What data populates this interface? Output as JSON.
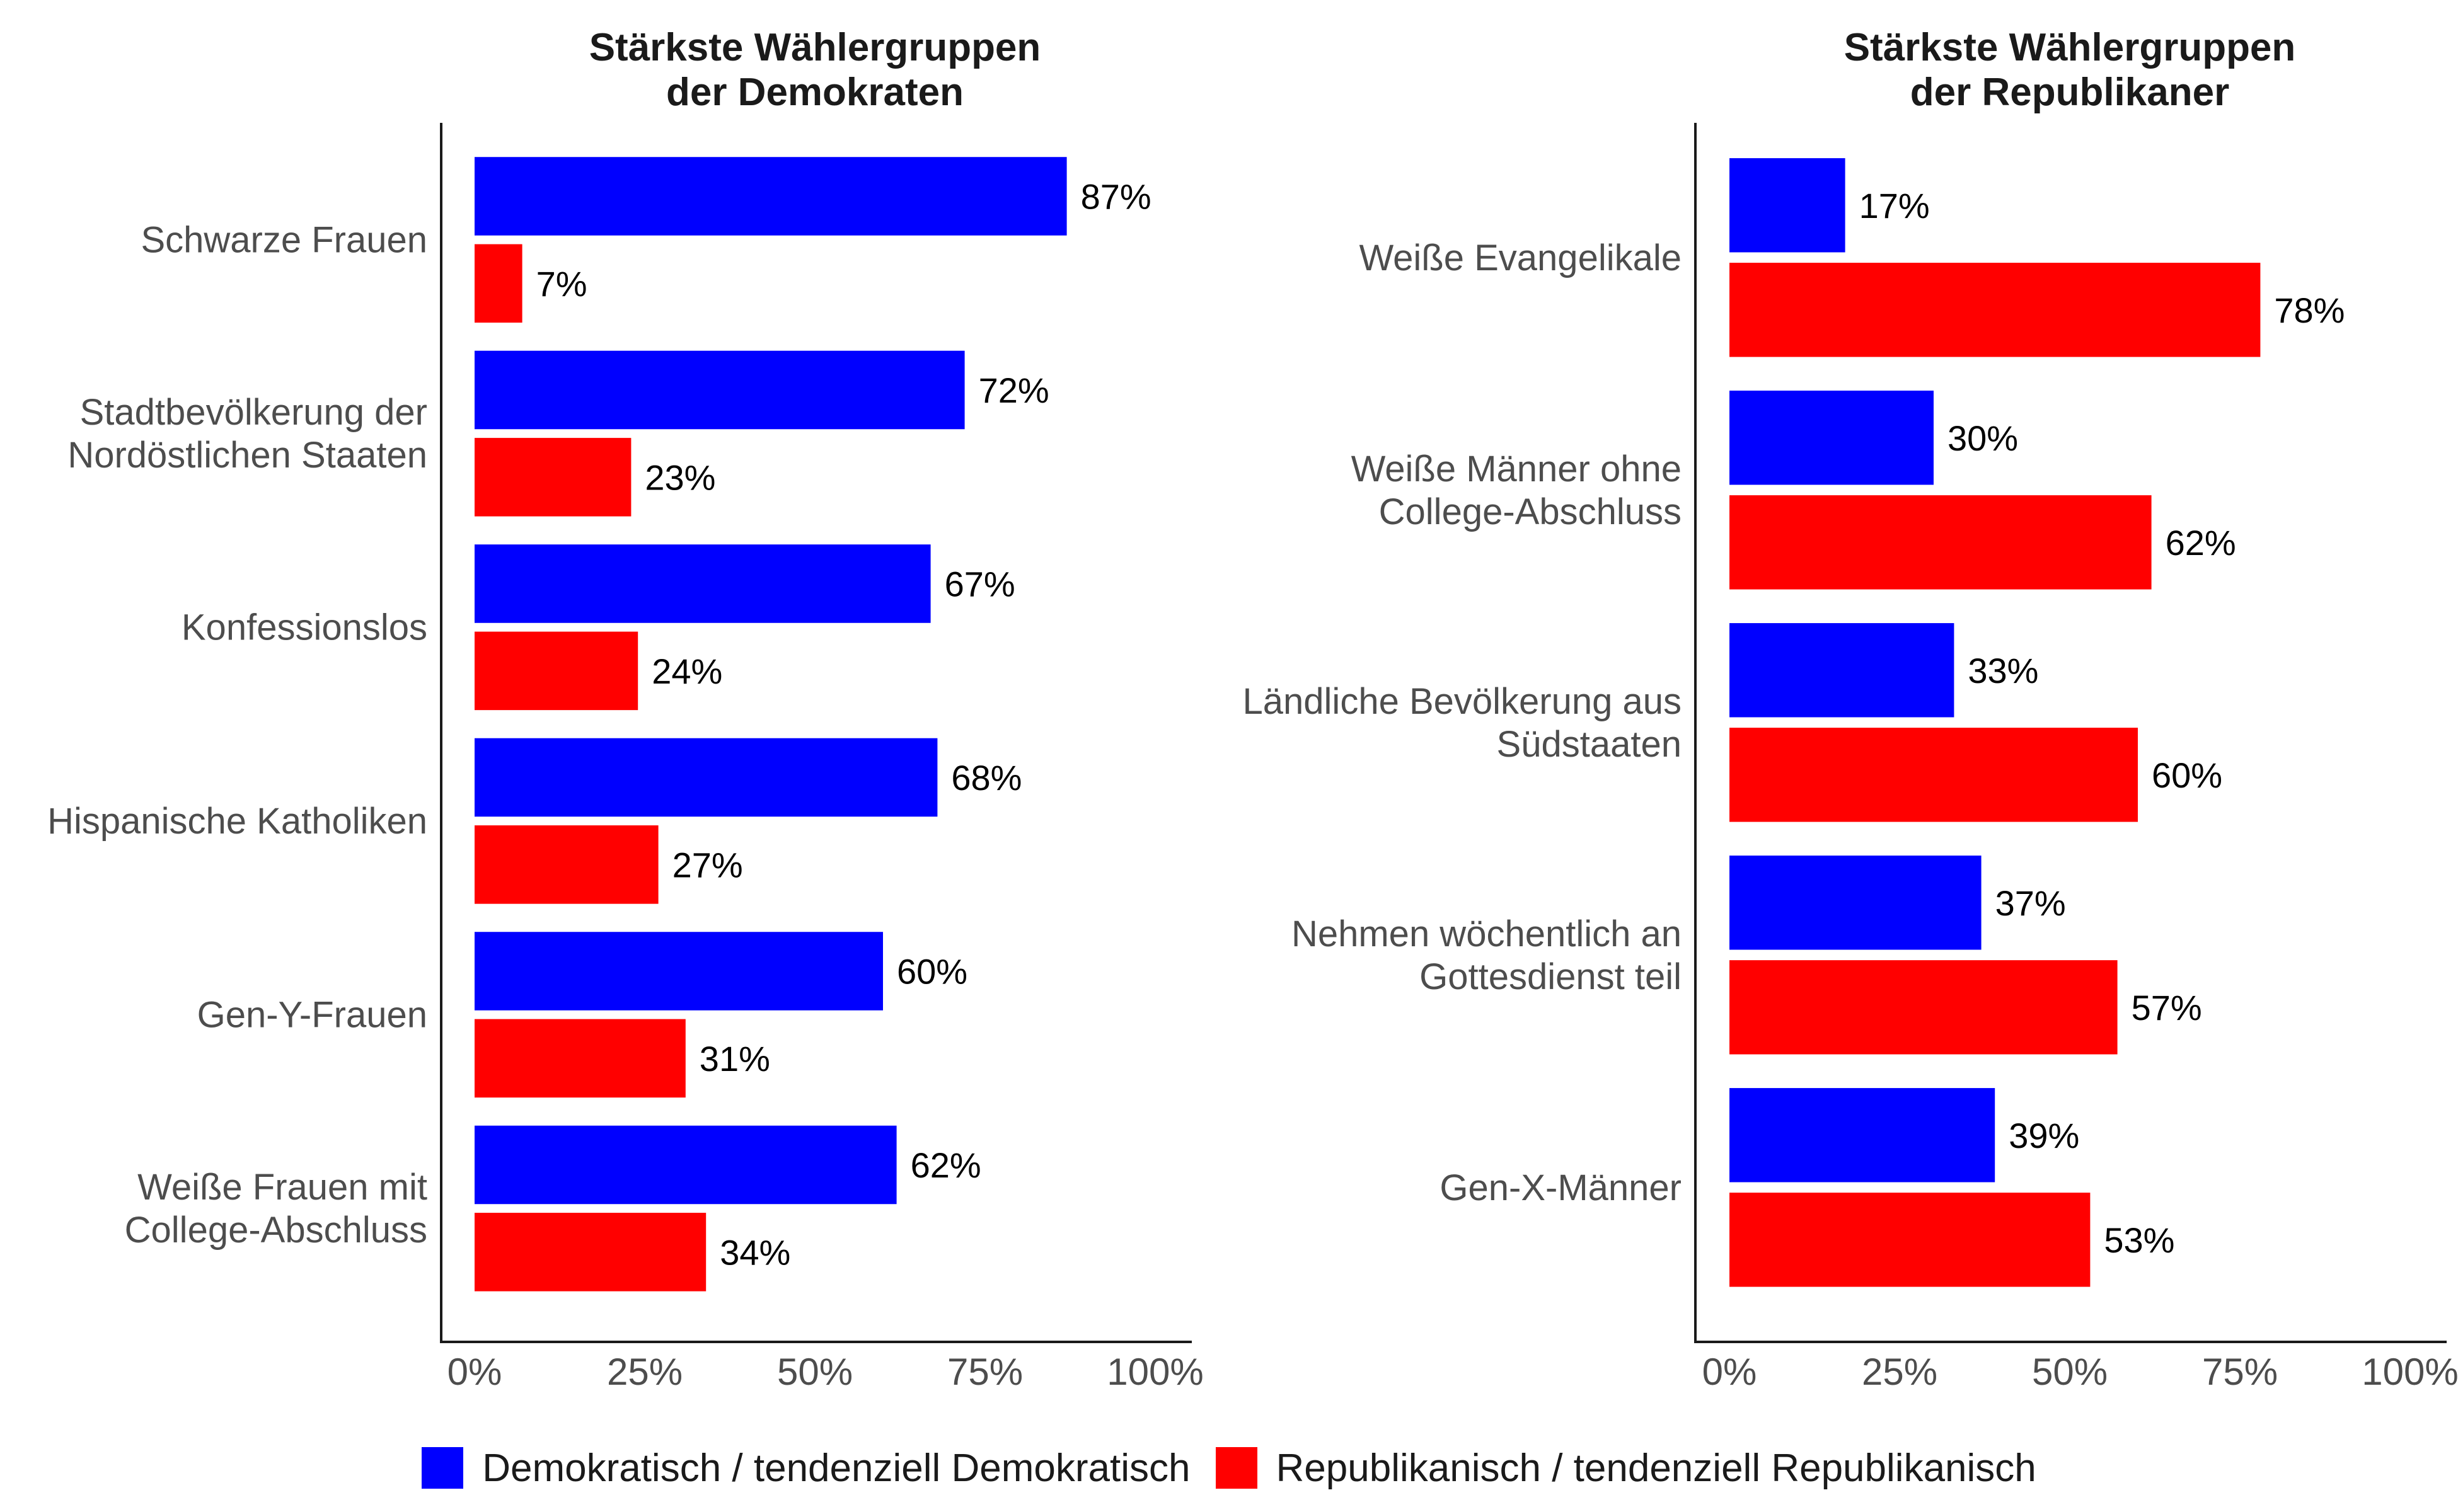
{
  "colors": {
    "democratic": "#0000FF",
    "republican": "#FF0000",
    "axis": "#1a1a1a",
    "category_text": "#4d4d4d",
    "value_text": "#000000"
  },
  "legend": {
    "democratic_label": "Demokratisch / tendenziell Demokratisch",
    "republican_label": "Republikanisch / tendenziell Republikanisch"
  },
  "chart_data": [
    {
      "type": "bar",
      "orientation": "horizontal",
      "title": [
        "Stärkste Wählergruppen",
        "der Demokraten"
      ],
      "categories": [
        [
          "Schwarze Frauen"
        ],
        [
          "Stadtbevölkerung der",
          "Nordöstlichen Staaten"
        ],
        [
          "Konfessionslos"
        ],
        [
          "Hispanische Katholiken"
        ],
        [
          "Gen-Y-Frauen"
        ],
        [
          "Weiße Frauen mit",
          "College-Abschluss"
        ]
      ],
      "series": [
        {
          "name": "Demokratisch / tendenziell Demokratisch",
          "key": "democratic",
          "values": [
            87,
            72,
            67,
            68,
            60,
            62
          ],
          "labels": [
            "87%",
            "72%",
            "67%",
            "68%",
            "60%",
            "62%"
          ]
        },
        {
          "name": "Republikanisch / tendenziell Republikanisch",
          "key": "republican",
          "values": [
            7,
            23,
            24,
            27,
            31,
            34
          ],
          "labels": [
            "7%",
            "23%",
            "24%",
            "27%",
            "31%",
            "34%"
          ]
        }
      ],
      "xlim": [
        0,
        100
      ],
      "ticks": [
        0,
        25,
        50,
        75,
        100
      ],
      "tick_labels": [
        "0%",
        "25%",
        "50%",
        "75%",
        "100%"
      ],
      "grid": false
    },
    {
      "type": "bar",
      "orientation": "horizontal",
      "title": [
        "Stärkste Wählergruppen",
        "der Republikaner"
      ],
      "categories": [
        [
          "Weiße Evangelikale"
        ],
        [
          "Weiße Männer ohne",
          "College-Abschluss"
        ],
        [
          "Ländliche Bevölkerung aus",
          "Südstaaten"
        ],
        [
          "Nehmen wöchentlich an",
          "Gottesdienst teil"
        ],
        [
          "Gen-X-Männer"
        ]
      ],
      "series": [
        {
          "name": "Demokratisch / tendenziell Demokratisch",
          "key": "democratic",
          "values": [
            17,
            30,
            33,
            37,
            39
          ],
          "labels": [
            "17%",
            "30%",
            "33%",
            "37%",
            "39%"
          ]
        },
        {
          "name": "Republikanisch / tendenziell Republikanisch",
          "key": "republican",
          "values": [
            78,
            62,
            60,
            57,
            53
          ],
          "labels": [
            "78%",
            "62%",
            "60%",
            "57%",
            "53%"
          ]
        }
      ],
      "xlim": [
        0,
        100
      ],
      "ticks": [
        0,
        25,
        50,
        75,
        100
      ],
      "tick_labels": [
        "0%",
        "25%",
        "50%",
        "75%",
        "100%"
      ],
      "grid": false
    }
  ]
}
